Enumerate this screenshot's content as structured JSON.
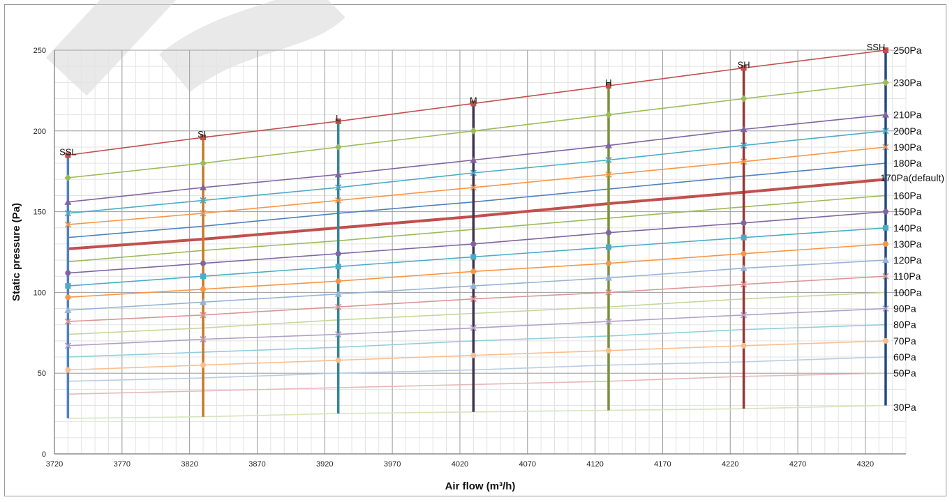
{
  "chart_data": {
    "type": "line",
    "xlabel": "Air flow (m³/h)",
    "ylabel": "Static pressure (Pa)",
    "xlim": [
      3720,
      4350
    ],
    "ylim": [
      0,
      250
    ],
    "x_ticks": [
      "3720",
      "3770",
      "3820",
      "3870",
      "3920",
      "3970",
      "4020",
      "4070",
      "4120",
      "4170",
      "4220",
      "4270",
      "4320"
    ],
    "y_ticks": [
      "0",
      "50",
      "100",
      "150",
      "200",
      "250"
    ],
    "grid": true,
    "pressure_lines": [
      {
        "name": "250Pa",
        "color": "#c0504d",
        "marker": "square",
        "points": [
          [
            3730,
            185
          ],
          [
            3830,
            196
          ],
          [
            3930,
            206
          ],
          [
            4030,
            217
          ],
          [
            4130,
            228
          ],
          [
            4230,
            239
          ],
          [
            4335,
            250
          ]
        ],
        "label_y": 250
      },
      {
        "name": "230Pa",
        "color": "#9bbb59",
        "marker": "diamond",
        "points": [
          [
            3730,
            171
          ],
          [
            3830,
            180
          ],
          [
            3930,
            190
          ],
          [
            4030,
            200
          ],
          [
            4130,
            210
          ],
          [
            4230,
            220
          ],
          [
            4335,
            230
          ]
        ],
        "label_y": 230
      },
      {
        "name": "210Pa",
        "color": "#8064a2",
        "marker": "triangle",
        "points": [
          [
            3730,
            156
          ],
          [
            3830,
            165
          ],
          [
            3930,
            173
          ],
          [
            4030,
            182
          ],
          [
            4130,
            191
          ],
          [
            4230,
            201
          ],
          [
            4335,
            210
          ]
        ],
        "label_y": 210
      },
      {
        "name": "200Pa",
        "color": "#4bacc6",
        "marker": "x",
        "points": [
          [
            3730,
            149
          ],
          [
            3830,
            157
          ],
          [
            3930,
            165
          ],
          [
            4030,
            174
          ],
          [
            4130,
            182
          ],
          [
            4230,
            191
          ],
          [
            4335,
            200
          ]
        ],
        "label_y": 200
      },
      {
        "name": "190Pa",
        "color": "#f79646",
        "marker": "x",
        "points": [
          [
            3730,
            142
          ],
          [
            3830,
            149
          ],
          [
            3930,
            157
          ],
          [
            4030,
            165
          ],
          [
            4130,
            173
          ],
          [
            4230,
            181
          ],
          [
            4335,
            190
          ]
        ],
        "label_y": 190
      },
      {
        "name": "180Pa",
        "color": "#4f81bd",
        "marker": "none",
        "points": [
          [
            3730,
            134
          ],
          [
            3830,
            141
          ],
          [
            3930,
            149
          ],
          [
            4030,
            156
          ],
          [
            4130,
            164
          ],
          [
            4230,
            172
          ],
          [
            4335,
            180
          ]
        ],
        "label_y": 180
      },
      {
        "name": "170Pa(default)",
        "color": "#c0504d",
        "marker": "none",
        "bold": true,
        "points": [
          [
            3730,
            127
          ],
          [
            3830,
            133
          ],
          [
            3930,
            140
          ],
          [
            4030,
            147
          ],
          [
            4130,
            155
          ],
          [
            4230,
            162
          ],
          [
            4335,
            170
          ]
        ],
        "label_y": 171
      },
      {
        "name": "160Pa",
        "color": "#9bbb59",
        "marker": "none",
        "points": [
          [
            3730,
            119
          ],
          [
            3830,
            126
          ],
          [
            3930,
            132
          ],
          [
            4030,
            139
          ],
          [
            4130,
            146
          ],
          [
            4230,
            153
          ],
          [
            4335,
            160
          ]
        ],
        "label_y": 160
      },
      {
        "name": "150Pa",
        "color": "#8064a2",
        "marker": "circle",
        "points": [
          [
            3730,
            112
          ],
          [
            3830,
            118
          ],
          [
            3930,
            124
          ],
          [
            4030,
            130
          ],
          [
            4130,
            137
          ],
          [
            4230,
            143
          ],
          [
            4335,
            150
          ]
        ],
        "label_y": 150
      },
      {
        "name": "140Pa",
        "color": "#4bacc6",
        "marker": "square",
        "points": [
          [
            3730,
            104
          ],
          [
            3830,
            110
          ],
          [
            3930,
            116
          ],
          [
            4030,
            122
          ],
          [
            4130,
            128
          ],
          [
            4230,
            134
          ],
          [
            4335,
            140
          ]
        ],
        "label_y": 140
      },
      {
        "name": "130Pa",
        "color": "#f79646",
        "marker": "circle",
        "points": [
          [
            3730,
            97
          ],
          [
            3830,
            102
          ],
          [
            3930,
            107
          ],
          [
            4030,
            113
          ],
          [
            4130,
            118
          ],
          [
            4230,
            124
          ],
          [
            4335,
            130
          ]
        ],
        "label_y": 130
      },
      {
        "name": "120Pa",
        "color": "#95b3d7",
        "marker": "triangle",
        "points": [
          [
            3730,
            89
          ],
          [
            3830,
            94
          ],
          [
            3930,
            99
          ],
          [
            4030,
            104
          ],
          [
            4130,
            109
          ],
          [
            4230,
            115
          ],
          [
            4335,
            120
          ]
        ],
        "label_y": 120
      },
      {
        "name": "110Pa",
        "color": "#da9694",
        "marker": "x",
        "points": [
          [
            3730,
            82
          ],
          [
            3830,
            86
          ],
          [
            3930,
            91
          ],
          [
            4030,
            96
          ],
          [
            4130,
            100
          ],
          [
            4230,
            105
          ],
          [
            4335,
            110
          ]
        ],
        "label_y": 110
      },
      {
        "name": "100Pa",
        "color": "#c4d79b",
        "marker": "none",
        "points": [
          [
            3730,
            74
          ],
          [
            3830,
            78
          ],
          [
            3930,
            83
          ],
          [
            4030,
            87
          ],
          [
            4130,
            91
          ],
          [
            4230,
            96
          ],
          [
            4335,
            100
          ]
        ],
        "label_y": 100
      },
      {
        "name": "90Pa",
        "color": "#b1a0c7",
        "marker": "x",
        "points": [
          [
            3730,
            67
          ],
          [
            3830,
            71
          ],
          [
            3930,
            74
          ],
          [
            4030,
            78
          ],
          [
            4130,
            82
          ],
          [
            4230,
            86
          ],
          [
            4335,
            90
          ]
        ],
        "label_y": 90
      },
      {
        "name": "80Pa",
        "color": "#92cddc",
        "marker": "none",
        "points": [
          [
            3730,
            60
          ],
          [
            3830,
            63
          ],
          [
            3930,
            66
          ],
          [
            4030,
            70
          ],
          [
            4130,
            73
          ],
          [
            4230,
            77
          ],
          [
            4335,
            80
          ]
        ],
        "label_y": 80
      },
      {
        "name": "70Pa",
        "color": "#fabf8f",
        "marker": "circle",
        "points": [
          [
            3730,
            52
          ],
          [
            3830,
            55
          ],
          [
            3930,
            58
          ],
          [
            4030,
            61
          ],
          [
            4130,
            64
          ],
          [
            4230,
            67
          ],
          [
            4335,
            70
          ]
        ],
        "label_y": 70
      },
      {
        "name": "60Pa",
        "color": "#b8cce4",
        "marker": "none",
        "points": [
          [
            3730,
            45
          ],
          [
            3830,
            47
          ],
          [
            3930,
            50
          ],
          [
            4030,
            52
          ],
          [
            4130,
            55
          ],
          [
            4230,
            57
          ],
          [
            4335,
            60
          ]
        ],
        "label_y": 60
      },
      {
        "name": "50Pa",
        "color": "#e6b9b8",
        "marker": "none",
        "points": [
          [
            3730,
            37
          ],
          [
            3830,
            39
          ],
          [
            3930,
            41
          ],
          [
            4030,
            43
          ],
          [
            4130,
            45
          ],
          [
            4230,
            48
          ],
          [
            4335,
            50
          ]
        ],
        "label_y": 50
      },
      {
        "name": "30Pa",
        "color": "#d7e4bc",
        "marker": "none",
        "points": [
          [
            3730,
            22
          ],
          [
            3830,
            23
          ],
          [
            3930,
            25
          ],
          [
            4030,
            26
          ],
          [
            4130,
            27
          ],
          [
            4230,
            28
          ],
          [
            4335,
            30
          ]
        ],
        "label_y": 29
      }
    ],
    "fan_speeds": [
      {
        "name": "SSL",
        "x": 3730,
        "ymin": 22,
        "ymax": 185,
        "color": "#4f81bd"
      },
      {
        "name": "SL",
        "x": 3830,
        "ymin": 23,
        "ymax": 196,
        "color": "#c8782a"
      },
      {
        "name": "L",
        "x": 3930,
        "ymin": 25,
        "ymax": 206,
        "color": "#31849b"
      },
      {
        "name": "M",
        "x": 4030,
        "ymin": 26,
        "ymax": 217,
        "color": "#403151"
      },
      {
        "name": "H",
        "x": 4130,
        "ymin": 27,
        "ymax": 228,
        "color": "#76923c"
      },
      {
        "name": "SH",
        "x": 4230,
        "ymin": 28,
        "ymax": 239,
        "color": "#953735"
      },
      {
        "name": "SSH",
        "x": 4335,
        "ymin": 30,
        "ymax": 250,
        "color": "#1f497d"
      }
    ]
  }
}
